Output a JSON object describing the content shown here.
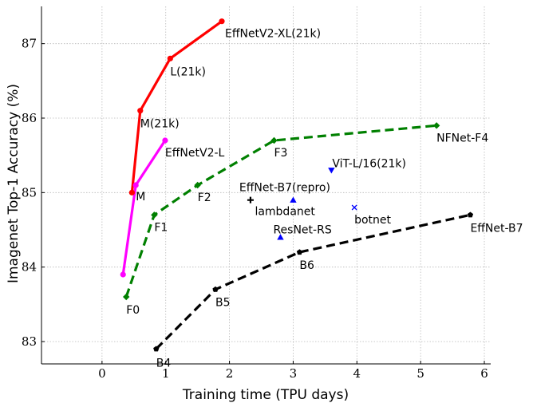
{
  "chart_data": {
    "type": "line",
    "xlabel": "Training time (TPU days)",
    "ylabel": "Imagenet Top-1 Accuracy (%)",
    "xlim": [
      -0.95,
      6.1
    ],
    "ylim": [
      82.7,
      87.5
    ],
    "xticks": [
      0,
      1,
      2,
      3,
      4,
      5,
      6
    ],
    "yticks": [
      83,
      84,
      85,
      86,
      87
    ],
    "grid": true,
    "legend": "none",
    "series": [
      {
        "color": "#ff0000",
        "style": "solid",
        "marker": "circle",
        "points": [
          {
            "x": 0.47,
            "y": 85.0,
            "label": ""
          },
          {
            "x": 0.6,
            "y": 86.1,
            "label": "M(21k)"
          },
          {
            "x": 1.07,
            "y": 86.8,
            "label": "L(21k)"
          },
          {
            "x": 1.88,
            "y": 87.3,
            "label": "EffNetV2-XL(21k)"
          }
        ]
      },
      {
        "color": "#ff00ff",
        "style": "solid",
        "marker": "circle",
        "points": [
          {
            "x": 0.33,
            "y": 83.9,
            "label": ""
          },
          {
            "x": 0.53,
            "y": 85.1,
            "label": "M"
          },
          {
            "x": 0.99,
            "y": 85.7,
            "label": "EffNetV2-L"
          }
        ]
      },
      {
        "color": "#008000",
        "style": "dashed",
        "marker": "diamond",
        "points": [
          {
            "x": 0.38,
            "y": 83.6,
            "label": "F0"
          },
          {
            "x": 0.82,
            "y": 84.7,
            "label": "F1"
          },
          {
            "x": 1.5,
            "y": 85.1,
            "label": "F2"
          },
          {
            "x": 2.7,
            "y": 85.7,
            "label": "F3"
          },
          {
            "x": 5.25,
            "y": 85.9,
            "label": "NFNet-F4"
          }
        ]
      },
      {
        "color": "#000000",
        "style": "dashed",
        "marker": "pentagon",
        "points": [
          {
            "x": 0.85,
            "y": 82.9,
            "label": "B4"
          },
          {
            "x": 1.78,
            "y": 83.7,
            "label": "B5"
          },
          {
            "x": 3.1,
            "y": 84.2,
            "label": "B6"
          },
          {
            "x": 5.78,
            "y": 84.7,
            "label": "EffNet-B7"
          }
        ]
      }
    ],
    "points": [
      {
        "x": 2.33,
        "y": 84.9,
        "marker": "plus",
        "color": "#000000",
        "label": "EffNet-B7(repro)"
      },
      {
        "x": 3.0,
        "y": 84.9,
        "marker": "triangle-up",
        "color": "#0000ff",
        "label": "lambdanet"
      },
      {
        "x": 3.96,
        "y": 84.8,
        "marker": "x",
        "color": "#0000ff",
        "label": "botnet"
      },
      {
        "x": 2.8,
        "y": 84.4,
        "marker": "triangle-up",
        "color": "#0000ff",
        "label": "ResNet-RS"
      },
      {
        "x": 3.6,
        "y": 85.3,
        "marker": "triangle-down",
        "color": "#0000ff",
        "label": "ViT-L/16(21k)"
      }
    ]
  }
}
